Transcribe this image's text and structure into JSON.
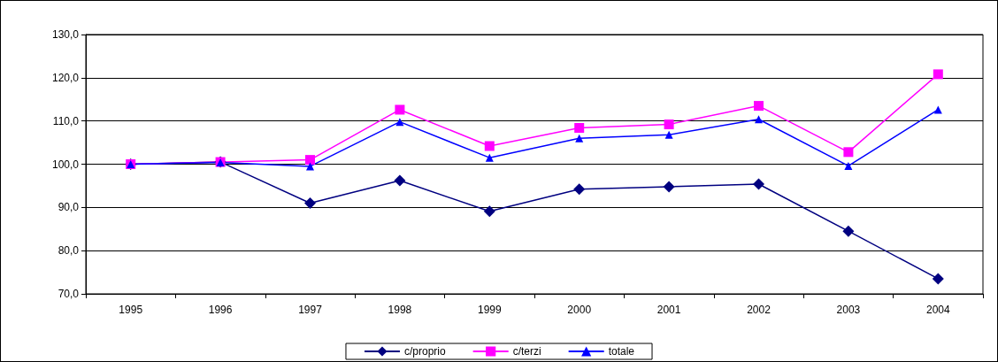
{
  "chart_data": {
    "type": "line",
    "categories": [
      "1995",
      "1996",
      "1997",
      "1998",
      "1999",
      "2000",
      "2001",
      "2002",
      "2003",
      "2004"
    ],
    "series": [
      {
        "name": "c/proprio",
        "color": "#000080",
        "marker": "diamond",
        "values": [
          100.0,
          100.5,
          91.0,
          96.2,
          89.1,
          94.2,
          94.8,
          95.4,
          84.5,
          73.5
        ]
      },
      {
        "name": "c/terzi",
        "color": "#ff00ff",
        "marker": "square",
        "values": [
          100.0,
          100.5,
          101.0,
          112.6,
          104.2,
          108.4,
          109.2,
          113.5,
          102.8,
          120.8
        ]
      },
      {
        "name": "totale",
        "color": "#0000ff",
        "marker": "triangle",
        "values": [
          100.0,
          100.4,
          99.5,
          109.8,
          101.5,
          106.0,
          106.8,
          110.4,
          99.6,
          112.6
        ]
      }
    ],
    "ylim": [
      70,
      130
    ],
    "yticks": [
      {
        "value": 70,
        "label": "70,0"
      },
      {
        "value": 80,
        "label": "80,0"
      },
      {
        "value": 90,
        "label": "90,0"
      },
      {
        "value": 100,
        "label": "100,0"
      },
      {
        "value": 110,
        "label": "110,0"
      },
      {
        "value": 120,
        "label": "120,0"
      },
      {
        "value": 130,
        "label": "130,0"
      }
    ],
    "grid": "y",
    "legend": "bottom",
    "line_style": "solid"
  }
}
